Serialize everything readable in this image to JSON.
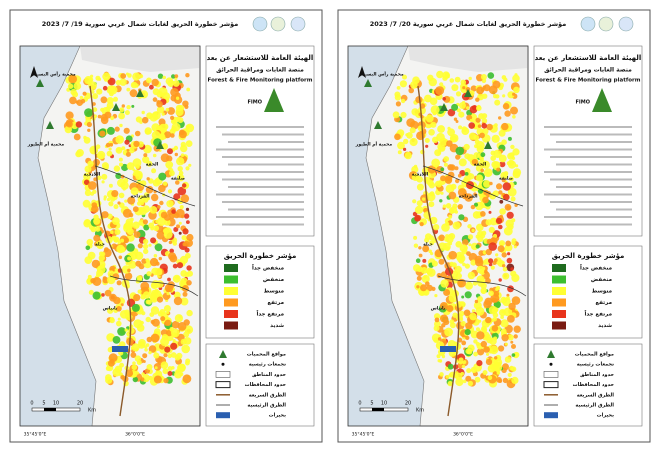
{
  "panels": [
    {
      "title": "مؤشر خطورة الحريق لغابات شمال غربي سورية 19/ 7/ 2023",
      "org": "الهيئة العامة للاستشعار عن بعد",
      "platform": "منصة الغابات ومراقبة الحرائق",
      "english": "Forest & Fire Monitoring platform",
      "logo": "FIMO",
      "legend_title": "مؤشر خطورة الحريق",
      "classes": [
        {
          "name": "منخفض جداً",
          "color": "#1e6b1e"
        },
        {
          "name": "منخفض",
          "color": "#3cbf2f"
        },
        {
          "name": "متوسط",
          "color": "#ffff33"
        },
        {
          "name": "مرتفع",
          "color": "#ff9a1f"
        },
        {
          "name": "مرتفع جداً",
          "color": "#e8341c"
        },
        {
          "name": "شديد",
          "color": "#7a1b12"
        }
      ],
      "features": [
        "مواقع المحميات",
        "تجمعات رئيسية",
        "حدود المناطق",
        "حدود المحافظات",
        "الطرق السريعة",
        "الطرق الرئيسية",
        "بحيرات"
      ],
      "places": [
        "محمية رأس البسيط",
        "محمية أم الطيور",
        "اللاذقية",
        "جبلة",
        "القرداحة",
        "بانياس",
        "الحفة",
        "صلنفة"
      ],
      "scale": [
        "0",
        "5",
        "10",
        "20"
      ],
      "scale_unit": "Km",
      "lon_labels": [
        "35°45'0\"E",
        "36°0'0\"E"
      ]
    },
    {
      "title": "مؤشر خطورة الحريق لغابات شمال غربي سورية 20/ 7/ 2023",
      "org": "الهيئة العامة للاستشعار عن بعد",
      "platform": "منصة الغابات ومراقبة الحرائق",
      "english": "Forest & Fire Monitoring platform",
      "logo": "FIMO",
      "legend_title": "مؤشر خطورة الحريق",
      "classes": [
        {
          "name": "منخفض جداً",
          "color": "#1e6b1e"
        },
        {
          "name": "منخفض",
          "color": "#3cbf2f"
        },
        {
          "name": "متوسط",
          "color": "#ffff33"
        },
        {
          "name": "مرتفع",
          "color": "#ff9a1f"
        },
        {
          "name": "مرتفع جداً",
          "color": "#e8341c"
        },
        {
          "name": "شديد",
          "color": "#7a1b12"
        }
      ],
      "features": [
        "مواقع المحميات",
        "تجمعات رئيسية",
        "حدود المناطق",
        "حدود المحافظات",
        "الطرق السريعة",
        "الطرق الرئيسية",
        "بحيرات"
      ],
      "places": [
        "محمية رأس البسيط",
        "محمية أم الطيور",
        "اللاذقية",
        "جبلة",
        "القرداحة",
        "بانياس",
        "الحفة",
        "صلنفة"
      ],
      "scale": [
        "0",
        "5",
        "10",
        "20"
      ],
      "scale_unit": "Km",
      "lon_labels": [
        "35°45'0\"E",
        "36°0'0\"E"
      ]
    }
  ]
}
